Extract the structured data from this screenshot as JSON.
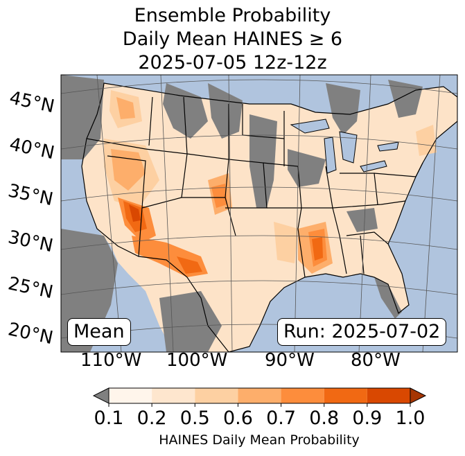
{
  "title": {
    "line1": "Ensemble Probability",
    "line2": "Daily Mean HAINES ≥ 6",
    "line3": "2025-07-05 12z-12z"
  },
  "map": {
    "region": "Contiguous United States",
    "lat_labels": [
      "45°N",
      "40°N",
      "35°N",
      "30°N",
      "25°N",
      "20°N"
    ],
    "lon_labels": [
      "110°W",
      "100°W",
      "90°W",
      "80°W"
    ],
    "mean_label": "Mean",
    "run_label": "Run: 2025-07-02",
    "colors": {
      "ocean": "#b0c4de",
      "missing": "#808080",
      "borders": "#000000"
    }
  },
  "colorbar": {
    "ticks": [
      "0.1",
      "0.2",
      "0.5",
      "0.6",
      "0.7",
      "0.8",
      "0.9",
      "1.0"
    ],
    "label": "HAINES Daily Mean Probability",
    "under_color": "#808080",
    "colors": [
      "#fff5eb",
      "#fee6ce",
      "#fdd0a2",
      "#fdae6b",
      "#fd8d3c",
      "#f16913",
      "#d94801",
      "#a63603"
    ]
  }
}
